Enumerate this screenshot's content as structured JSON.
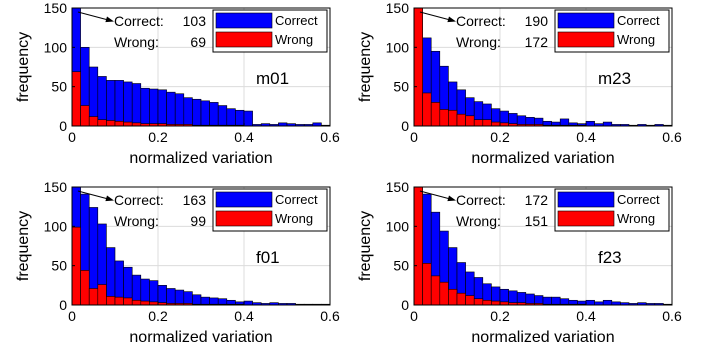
{
  "chart_data": [
    {
      "type": "bar",
      "panel_label": "m01",
      "annotation": {
        "correct_label": "Correct:",
        "correct_value": "103",
        "wrong_label": "Wrong:",
        "wrong_value": "69"
      },
      "xlabel": "normalized variation",
      "ylabel": "frequency",
      "xlim": [
        0,
        0.6
      ],
      "ylim": [
        0,
        150
      ],
      "xticks": [
        "0",
        "0.2",
        "0.4",
        "0.6"
      ],
      "yticks": [
        "0",
        "50",
        "100",
        "150"
      ],
      "grid": true,
      "legend_position": "top-right",
      "bin_width": 0.02,
      "series": [
        {
          "name": "Correct",
          "color": "#0000FF",
          "values": [
            150,
            100,
            75,
            63,
            58,
            58,
            56,
            54,
            48,
            47,
            46,
            43,
            41,
            36,
            34,
            32,
            30,
            26,
            22,
            20,
            19,
            2,
            3,
            2,
            4,
            3,
            2,
            2,
            4,
            1
          ]
        },
        {
          "name": "Wrong",
          "color": "#FF0000",
          "values": [
            69,
            26,
            12,
            8,
            7,
            6,
            5,
            4,
            3,
            3,
            3,
            2,
            2,
            2,
            1,
            1,
            1,
            1,
            1,
            1,
            0,
            0,
            0,
            0,
            0,
            0,
            0,
            0,
            0,
            0
          ]
        }
      ]
    },
    {
      "type": "bar",
      "panel_label": "m23",
      "annotation": {
        "correct_label": "Correct:",
        "correct_value": "190",
        "wrong_label": "Wrong:",
        "wrong_value": "172"
      },
      "xlabel": "normalized variation",
      "ylabel": "frequency",
      "xlim": [
        0,
        0.6
      ],
      "ylim": [
        0,
        150
      ],
      "xticks": [
        "0",
        "0.2",
        "0.4",
        "0.6"
      ],
      "yticks": [
        "0",
        "50",
        "100",
        "150"
      ],
      "grid": true,
      "legend_position": "top-right",
      "bin_width": 0.02,
      "series": [
        {
          "name": "Correct",
          "color": "#0000FF",
          "values": [
            150,
            112,
            95,
            76,
            56,
            46,
            36,
            31,
            28,
            22,
            19,
            16,
            13,
            11,
            10,
            6,
            5,
            9,
            4,
            3,
            6,
            3,
            5,
            2,
            2,
            1,
            2,
            1,
            2,
            1
          ]
        },
        {
          "name": "Wrong",
          "color": "#FF0000",
          "values": [
            150,
            42,
            30,
            21,
            20,
            15,
            13,
            8,
            8,
            5,
            4,
            3,
            2,
            2,
            2,
            1,
            1,
            1,
            1,
            1,
            0,
            0,
            0,
            0,
            0,
            0,
            0,
            0,
            0,
            0
          ]
        }
      ]
    },
    {
      "type": "bar",
      "panel_label": "f01",
      "annotation": {
        "correct_label": "Correct:",
        "correct_value": "163",
        "wrong_label": "Wrong:",
        "wrong_value": "99"
      },
      "xlabel": "normalized variation",
      "ylabel": "frequency",
      "xlim": [
        0,
        0.6
      ],
      "ylim": [
        0,
        150
      ],
      "xticks": [
        "0",
        "0.2",
        "0.4",
        "0.6"
      ],
      "yticks": [
        "0",
        "50",
        "100",
        "150"
      ],
      "grid": true,
      "legend_position": "top-right",
      "bin_width": 0.02,
      "series": [
        {
          "name": "Correct",
          "color": "#0000FF",
          "values": [
            150,
            141,
            124,
            103,
            73,
            56,
            48,
            38,
            33,
            31,
            25,
            21,
            19,
            17,
            13,
            10,
            9,
            8,
            6,
            4,
            5,
            3,
            2,
            3,
            2,
            2,
            1,
            1,
            1,
            1
          ]
        },
        {
          "name": "Wrong",
          "color": "#FF0000",
          "values": [
            99,
            44,
            21,
            26,
            11,
            10,
            9,
            6,
            5,
            4,
            3,
            2,
            2,
            2,
            1,
            1,
            1,
            1,
            1,
            1,
            0,
            0,
            0,
            0,
            0,
            0,
            0,
            0,
            0,
            0
          ]
        }
      ]
    },
    {
      "type": "bar",
      "panel_label": "f23",
      "annotation": {
        "correct_label": "Correct:",
        "correct_value": "172",
        "wrong_label": "Wrong:",
        "wrong_value": "151"
      },
      "xlabel": "normalized variation",
      "ylabel": "frequency",
      "xlim": [
        0,
        0.6
      ],
      "ylim": [
        0,
        150
      ],
      "xticks": [
        "0",
        "0.2",
        "0.4",
        "0.6"
      ],
      "yticks": [
        "0",
        "50",
        "100",
        "150"
      ],
      "grid": true,
      "legend_position": "top-right",
      "bin_width": 0.02,
      "series": [
        {
          "name": "Correct",
          "color": "#0000FF",
          "values": [
            150,
            141,
            118,
            94,
            73,
            54,
            42,
            35,
            27,
            23,
            20,
            18,
            16,
            14,
            12,
            10,
            10,
            8,
            6,
            5,
            6,
            4,
            6,
            4,
            3,
            2,
            3,
            2,
            2,
            1
          ]
        },
        {
          "name": "Wrong",
          "color": "#FF0000",
          "values": [
            151,
            53,
            37,
            29,
            20,
            15,
            12,
            8,
            6,
            5,
            4,
            3,
            3,
            2,
            2,
            1,
            1,
            1,
            1,
            1,
            0,
            0,
            0,
            0,
            0,
            0,
            0,
            0,
            0,
            0
          ]
        }
      ]
    }
  ]
}
